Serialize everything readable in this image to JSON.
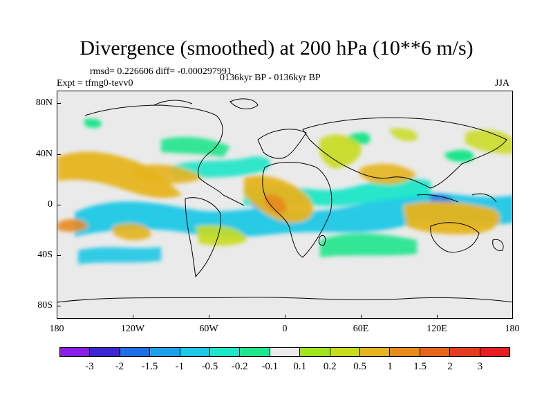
{
  "title": "Divergence (smoothed) at 200 hPa (10**6 m/s)",
  "stats_line": "rmsd= 0.226606 diff= -0.000297991",
  "expt_line": "Expt = tfmg0-tevv0",
  "period_line": "0136kyr BP - 0136kyr BP",
  "season": "JJA",
  "y_axis_labels": [
    "80N",
    "40N",
    "0",
    "40S",
    "80S"
  ],
  "x_axis_labels": [
    "180",
    "120W",
    "60W",
    "0",
    "60E",
    "120E",
    "180"
  ],
  "colorbar": {
    "colors": [
      "#8a1ee6",
      "#3c28d2",
      "#1e6ee6",
      "#1ea0e6",
      "#1ec8e6",
      "#1ee6c8",
      "#1ee68c",
      "#ebebeb",
      "#a0e61e",
      "#c8dc1e",
      "#e6b41e",
      "#e68c1e",
      "#e6641e",
      "#e63c1e",
      "#e61e1e"
    ],
    "labels": [
      "-3",
      "-2",
      "-1.5",
      "-1",
      "-0.5",
      "-0.2",
      "-0.1",
      "0.1",
      "0.2",
      "0.5",
      "1",
      "1.5",
      "2",
      "3"
    ]
  }
}
